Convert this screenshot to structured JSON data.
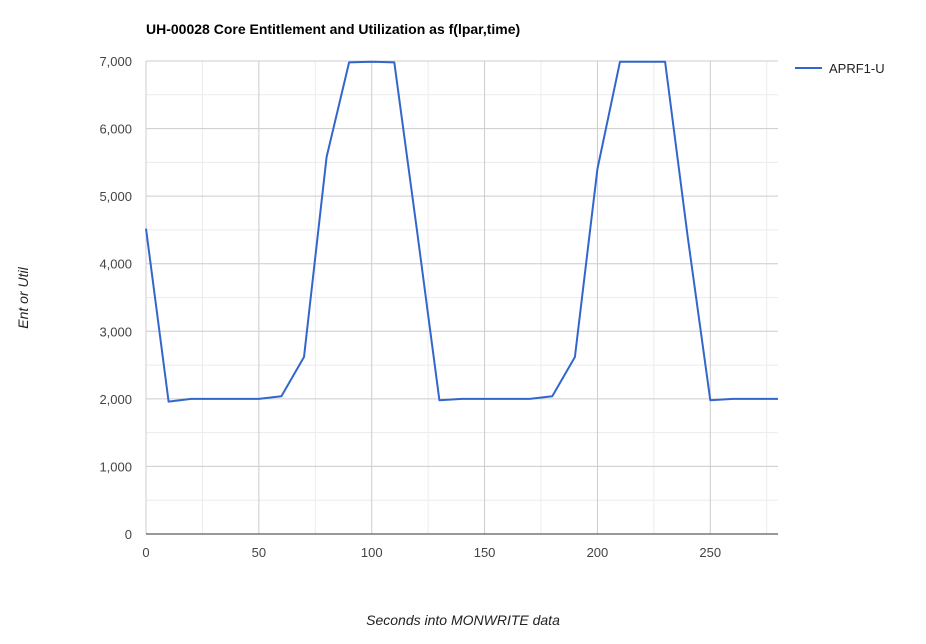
{
  "chart_data": {
    "type": "line",
    "title": "UH-00028 Core Entitlement and Utilization as f(lpar,time)",
    "xlabel": "Seconds into MONWRITE data",
    "ylabel": "Ent or Util",
    "xlim": [
      0,
      280
    ],
    "ylim": [
      0,
      7000
    ],
    "x_ticks": [
      0,
      50,
      100,
      150,
      200,
      250
    ],
    "x_tick_labels": [
      "0",
      "50",
      "100",
      "150",
      "200",
      "250"
    ],
    "y_ticks": [
      0,
      1000,
      2000,
      3000,
      4000,
      5000,
      6000,
      7000
    ],
    "y_tick_labels": [
      "0",
      "1,000",
      "2,000",
      "3,000",
      "4,000",
      "5,000",
      "6,000",
      "7,000"
    ],
    "grid": true,
    "legend_position": "top-right",
    "series": [
      {
        "name": "APRF1-U",
        "color": "#3366cc",
        "x": [
          0,
          10,
          20,
          30,
          40,
          50,
          60,
          70,
          80,
          90,
          100,
          110,
          120,
          130,
          140,
          150,
          160,
          170,
          180,
          190,
          200,
          210,
          220,
          230,
          240,
          250,
          260,
          270,
          280
        ],
        "values": [
          4520,
          1960,
          2000,
          2000,
          2000,
          2000,
          2040,
          2620,
          5580,
          6980,
          6990,
          6980,
          4500,
          1980,
          2000,
          2000,
          2000,
          2000,
          2040,
          2620,
          5400,
          6990,
          6990,
          6990,
          4400,
          1980,
          2000,
          2000,
          2000
        ]
      }
    ]
  }
}
